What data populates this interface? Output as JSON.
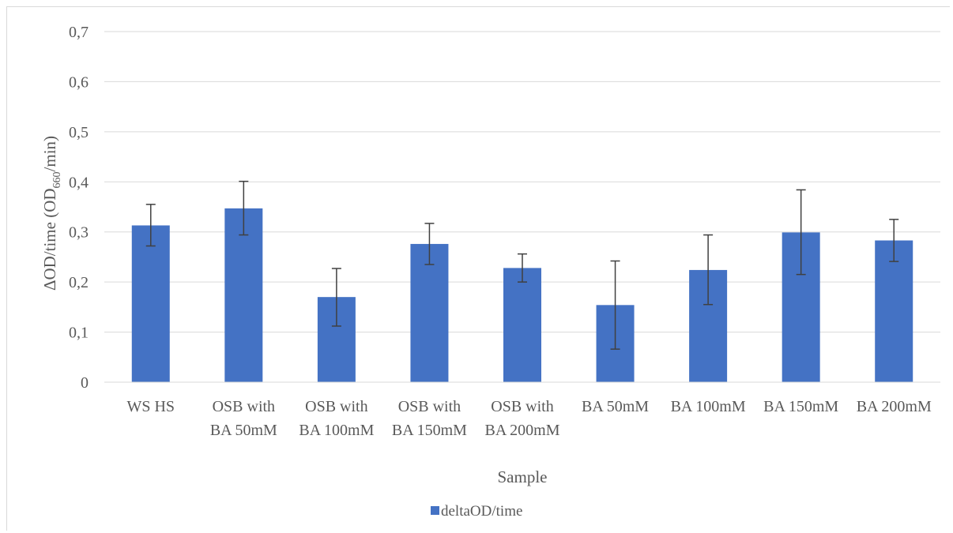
{
  "chart_data": {
    "type": "bar",
    "categories": [
      [
        "WS HS"
      ],
      [
        "OSB with",
        "BA 50mM"
      ],
      [
        "OSB with",
        "BA 100mM"
      ],
      [
        "OSB with",
        "BA 150mM"
      ],
      [
        "OSB with",
        "BA 200mM"
      ],
      [
        "BA 50mM"
      ],
      [
        "BA 100mM"
      ],
      [
        "BA 150mM"
      ],
      [
        "BA 200mM"
      ]
    ],
    "series": [
      {
        "name": "deltaOD/time",
        "color": "#4472c4",
        "values": [
          0.313,
          0.347,
          0.17,
          0.276,
          0.228,
          0.154,
          0.224,
          0.299,
          0.283
        ],
        "error_low": [
          0.272,
          0.294,
          0.112,
          0.235,
          0.2,
          0.066,
          0.155,
          0.215,
          0.241
        ],
        "error_high": [
          0.355,
          0.401,
          0.227,
          0.317,
          0.256,
          0.242,
          0.294,
          0.384,
          0.325
        ]
      }
    ],
    "xlabel": "Sample",
    "ylabel": {
      "prefix": "ΔOD/time (OD",
      "subscript": "660",
      "suffix": "/min)"
    },
    "ylim": [
      0,
      0.7
    ],
    "yticks": [
      "0",
      "0,1",
      "0,2",
      "0,3",
      "0,4",
      "0,5",
      "0,6",
      "0,7"
    ],
    "grid": true,
    "legend_position": "bottom"
  }
}
